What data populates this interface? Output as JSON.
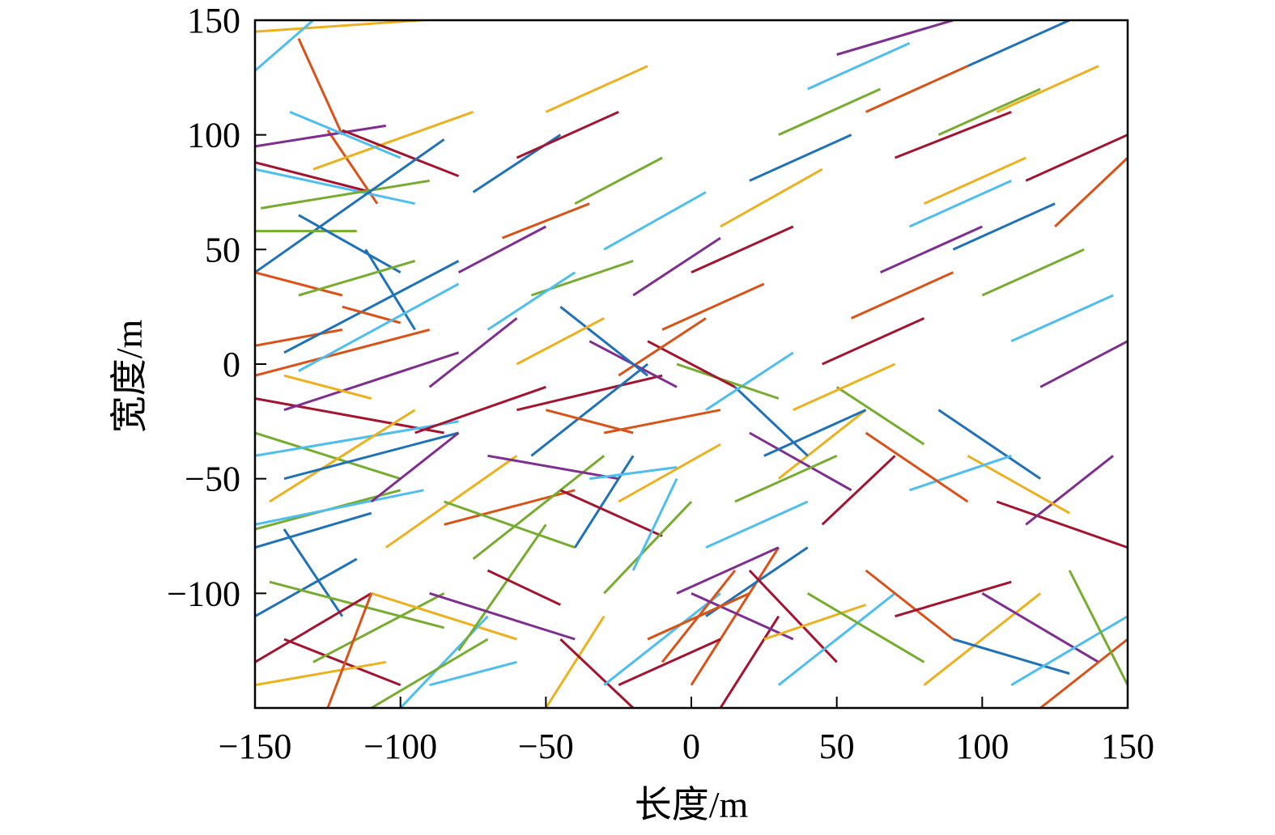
{
  "chart_data": {
    "type": "line",
    "title": "",
    "xlabel": "长度/m",
    "ylabel": "宽度/m",
    "xlim": [
      -150,
      150
    ],
    "ylim": [
      -150,
      150
    ],
    "xticks": [
      -150,
      -100,
      -50,
      0,
      50,
      100,
      150
    ],
    "yticks": [
      -100,
      -50,
      0,
      50,
      100,
      150
    ],
    "xtick_labels": [
      "−150",
      "−100",
      "−50",
      "0",
      "50",
      "100",
      "150"
    ],
    "ytick_labels": [
      "−100",
      "−50",
      "0",
      "50",
      "100",
      "150"
    ],
    "grid": false,
    "legend": "none",
    "colors": [
      "#1f72b8",
      "#d95319",
      "#edb120",
      "#7e2f8e",
      "#77ac30",
      "#4dbeee",
      "#a2142f"
    ],
    "segments": [
      [
        -150,
        145,
        -70,
        152,
        2
      ],
      [
        -150,
        128,
        -130,
        150,
        5
      ],
      [
        -135,
        142,
        -120,
        100,
        1
      ],
      [
        -125,
        102,
        -108,
        70,
        1
      ],
      [
        -150,
        85,
        -95,
        70,
        5
      ],
      [
        -150,
        88,
        -110,
        75,
        6
      ],
      [
        -148,
        68,
        -90,
        80,
        4
      ],
      [
        -130,
        85,
        -75,
        110,
        2
      ],
      [
        -150,
        95,
        -105,
        104,
        3
      ],
      [
        -120,
        102,
        -80,
        82,
        6
      ],
      [
        -138,
        110,
        -100,
        90,
        5
      ],
      [
        -150,
        40,
        -85,
        98,
        0
      ],
      [
        -150,
        58,
        -115,
        58,
        4
      ],
      [
        -150,
        40,
        -120,
        30,
        1
      ],
      [
        -135,
        65,
        -100,
        40,
        0
      ],
      [
        -112,
        50,
        -95,
        15,
        0
      ],
      [
        -150,
        8,
        -120,
        15,
        1
      ],
      [
        -135,
        30,
        -95,
        45,
        4
      ],
      [
        -140,
        5,
        -80,
        45,
        0
      ],
      [
        -100,
        18,
        -120,
        25,
        1
      ],
      [
        -150,
        -5,
        -90,
        15,
        1
      ],
      [
        -135,
        -3,
        -80,
        35,
        5
      ],
      [
        -150,
        -15,
        -85,
        -30,
        6
      ],
      [
        -140,
        -20,
        -80,
        5,
        3
      ],
      [
        -150,
        -30,
        -100,
        -50,
        4
      ],
      [
        -140,
        -5,
        -110,
        -15,
        2
      ],
      [
        -150,
        -40,
        -80,
        -25,
        5
      ],
      [
        -145,
        -60,
        -95,
        -20,
        2
      ],
      [
        -150,
        -72,
        -100,
        -55,
        4
      ],
      [
        -150,
        -70,
        -92,
        -55,
        5
      ],
      [
        -140,
        -50,
        -80,
        -30,
        0
      ],
      [
        -150,
        -80,
        -110,
        -65,
        0
      ],
      [
        -140,
        -72,
        -120,
        -110,
        0
      ],
      [
        -150,
        -110,
        -115,
        -85,
        0
      ],
      [
        -145,
        -95,
        -85,
        -115,
        4
      ],
      [
        -150,
        -130,
        -110,
        -100,
        6
      ],
      [
        -140,
        -120,
        -100,
        -140,
        6
      ],
      [
        -150,
        -140,
        -105,
        -130,
        2
      ],
      [
        -130,
        -130,
        -85,
        -100,
        4
      ],
      [
        -110,
        -100,
        -60,
        -120,
        2
      ],
      [
        -125,
        -150,
        -110,
        -100,
        1
      ],
      [
        -100,
        -150,
        -70,
        -110,
        5
      ],
      [
        -110,
        -150,
        -70,
        -120,
        4
      ],
      [
        -90,
        -140,
        -60,
        -130,
        5
      ],
      [
        -80,
        -125,
        -50,
        -70,
        4
      ],
      [
        -90,
        -100,
        -40,
        -120,
        3
      ],
      [
        -70,
        -90,
        -45,
        -105,
        6
      ],
      [
        -110,
        -60,
        -80,
        -30,
        3
      ],
      [
        -105,
        -80,
        -60,
        -40,
        2
      ],
      [
        -85,
        -70,
        -40,
        -55,
        1
      ],
      [
        -95,
        -30,
        -50,
        -10,
        6
      ],
      [
        -90,
        -10,
        -60,
        20,
        3
      ],
      [
        -85,
        -60,
        -40,
        -80,
        4
      ],
      [
        -75,
        -85,
        -30,
        -40,
        4
      ],
      [
        -70,
        -40,
        -25,
        -50,
        3
      ],
      [
        -60,
        -20,
        -10,
        -5,
        6
      ],
      [
        -55,
        -40,
        -15,
        0,
        0
      ],
      [
        -50,
        -20,
        -20,
        -30,
        1
      ],
      [
        -40,
        -80,
        -20,
        -40,
        0
      ],
      [
        -35,
        -50,
        -5,
        -45,
        5
      ],
      [
        -30,
        -30,
        10,
        -20,
        1
      ],
      [
        -25,
        -60,
        10,
        -35,
        2
      ],
      [
        -45,
        -55,
        -10,
        -75,
        6
      ],
      [
        -30,
        -100,
        0,
        -60,
        4
      ],
      [
        -20,
        -90,
        -5,
        -50,
        5
      ],
      [
        -50,
        -150,
        -30,
        -110,
        2
      ],
      [
        -45,
        -120,
        -20,
        -150,
        6
      ],
      [
        -30,
        -140,
        10,
        -100,
        5
      ],
      [
        -15,
        -120,
        20,
        -100,
        4
      ],
      [
        -10,
        -130,
        15,
        -90,
        1
      ],
      [
        0,
        -140,
        30,
        -80,
        1
      ],
      [
        10,
        -150,
        30,
        -110,
        6
      ],
      [
        5,
        -110,
        40,
        -80,
        0
      ],
      [
        0,
        -100,
        35,
        -120,
        3
      ],
      [
        20,
        -90,
        50,
        -130,
        6
      ],
      [
        25,
        -120,
        60,
        -105,
        2
      ],
      [
        30,
        -140,
        70,
        -100,
        5
      ],
      [
        40,
        -100,
        80,
        -130,
        4
      ],
      [
        60,
        -90,
        90,
        -120,
        1
      ],
      [
        70,
        -110,
        110,
        -95,
        6
      ],
      [
        80,
        -140,
        120,
        -100,
        2
      ],
      [
        90,
        -120,
        130,
        -135,
        0
      ],
      [
        100,
        -100,
        140,
        -130,
        3
      ],
      [
        110,
        -140,
        150,
        -110,
        5
      ],
      [
        120,
        -150,
        150,
        -120,
        1
      ],
      [
        130,
        -90,
        150,
        -140,
        4
      ],
      [
        105,
        -60,
        150,
        -80,
        6
      ],
      [
        115,
        -70,
        145,
        -40,
        3
      ],
      [
        95,
        -40,
        130,
        -65,
        2
      ],
      [
        85,
        -20,
        120,
        -50,
        0
      ],
      [
        75,
        -55,
        110,
        -40,
        5
      ],
      [
        60,
        -30,
        95,
        -60,
        1
      ],
      [
        50,
        -10,
        80,
        -35,
        4
      ],
      [
        45,
        -70,
        70,
        -40,
        6
      ],
      [
        30,
        -50,
        60,
        -20,
        2
      ],
      [
        20,
        -30,
        55,
        -55,
        3
      ],
      [
        15,
        -10,
        40,
        -40,
        0
      ],
      [
        5,
        -20,
        35,
        5,
        5
      ],
      [
        -5,
        0,
        30,
        -15,
        4
      ],
      [
        -15,
        10,
        15,
        -10,
        6
      ],
      [
        -25,
        -5,
        5,
        20,
        1
      ],
      [
        -35,
        10,
        -5,
        -10,
        3
      ],
      [
        -45,
        25,
        -15,
        -5,
        0
      ],
      [
        -60,
        0,
        -30,
        20,
        2
      ],
      [
        -55,
        30,
        -20,
        45,
        4
      ],
      [
        -70,
        15,
        -40,
        40,
        5
      ],
      [
        -80,
        40,
        -50,
        60,
        3
      ],
      [
        -65,
        55,
        -35,
        70,
        1
      ],
      [
        -75,
        75,
        -45,
        100,
        0
      ],
      [
        -60,
        90,
        -25,
        110,
        6
      ],
      [
        -50,
        110,
        -15,
        130,
        2
      ],
      [
        -40,
        70,
        -10,
        90,
        4
      ],
      [
        -30,
        50,
        5,
        75,
        5
      ],
      [
        -20,
        30,
        10,
        55,
        3
      ],
      [
        -10,
        15,
        25,
        35,
        1
      ],
      [
        0,
        40,
        35,
        60,
        6
      ],
      [
        10,
        60,
        45,
        85,
        2
      ],
      [
        20,
        80,
        55,
        100,
        0
      ],
      [
        30,
        100,
        65,
        120,
        4
      ],
      [
        40,
        120,
        75,
        140,
        5
      ],
      [
        50,
        135,
        90,
        150,
        3
      ],
      [
        60,
        110,
        95,
        130,
        1
      ],
      [
        70,
        90,
        110,
        110,
        6
      ],
      [
        80,
        70,
        115,
        90,
        2
      ],
      [
        90,
        50,
        125,
        70,
        0
      ],
      [
        100,
        30,
        135,
        50,
        4
      ],
      [
        110,
        10,
        145,
        30,
        5
      ],
      [
        120,
        -10,
        150,
        10,
        3
      ],
      [
        125,
        60,
        150,
        90,
        1
      ],
      [
        115,
        80,
        150,
        100,
        6
      ],
      [
        105,
        110,
        140,
        130,
        2
      ],
      [
        95,
        130,
        130,
        150,
        0
      ],
      [
        85,
        100,
        120,
        120,
        4
      ],
      [
        75,
        60,
        110,
        80,
        5
      ],
      [
        65,
        40,
        100,
        60,
        3
      ],
      [
        55,
        20,
        90,
        40,
        1
      ],
      [
        45,
        0,
        80,
        20,
        6
      ],
      [
        35,
        -20,
        70,
        0,
        2
      ],
      [
        25,
        -40,
        60,
        -20,
        0
      ],
      [
        15,
        -60,
        50,
        -40,
        4
      ],
      [
        5,
        -80,
        40,
        -60,
        5
      ],
      [
        -5,
        -100,
        30,
        -80,
        3
      ],
      [
        -15,
        -120,
        20,
        -100,
        1
      ],
      [
        -25,
        -140,
        10,
        -120,
        6
      ]
    ]
  }
}
